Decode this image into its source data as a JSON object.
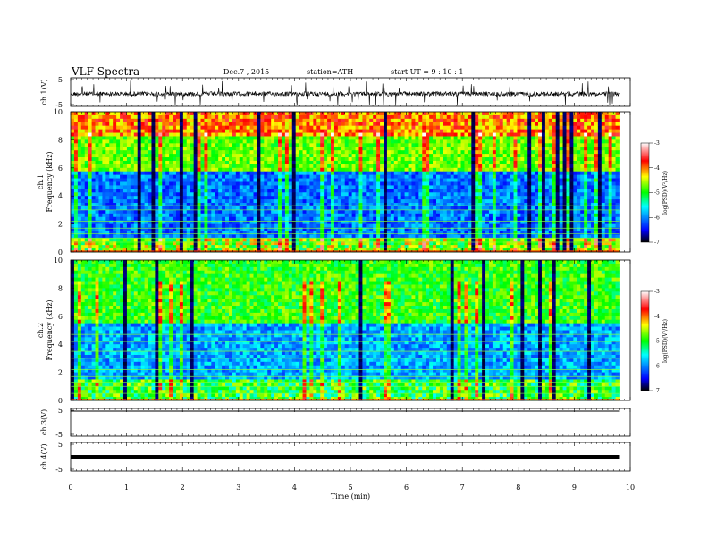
{
  "header": {
    "title": "VLF  Spectra",
    "date": "Dec.7  , 2015",
    "station": "station=ATH",
    "start": "start  UT  =   9  : 10 : 1"
  },
  "chart_data": [
    {
      "type": "line",
      "name": "ch1-waveform",
      "ylabel": "ch.1(V)",
      "ylim": [
        -5,
        5
      ],
      "yticks": [
        "5",
        "-5"
      ],
      "xlim": [
        0,
        10
      ],
      "data_extent_min": 9.8
    },
    {
      "type": "heatmap",
      "name": "ch1-spectrogram",
      "ylabel": "ch.1\nFrequency  (kHz)",
      "ylim": [
        0,
        10
      ],
      "yticks": [
        "0",
        "2",
        "4",
        "6",
        "8",
        "10"
      ],
      "colorbar": {
        "label": "log(PSD)(V²/Hz)",
        "range": [
          -7,
          -3
        ],
        "ticks": [
          "-3",
          "-4",
          "-5",
          "-6",
          "-7"
        ],
        "colormap": [
          "#000000",
          "#0000ff",
          "#00ffff",
          "#00ff00",
          "#ffff00",
          "#ff0000",
          "#ffffff"
        ]
      }
    },
    {
      "type": "heatmap",
      "name": "ch2-spectrogram",
      "ylabel": "ch.2\nFrequency  (kHz)",
      "ylim": [
        0,
        10
      ],
      "yticks": [
        "0",
        "2",
        "4",
        "6",
        "8",
        "10"
      ],
      "colorbar": {
        "label": "log(PSD)(V²/Hz)",
        "range": [
          -7,
          -3
        ],
        "ticks": [
          "-3",
          "-4",
          "-5",
          "-6",
          "-7"
        ],
        "colormap": [
          "#000000",
          "#0000ff",
          "#00ffff",
          "#00ff00",
          "#ffff00",
          "#ff0000",
          "#ffffff"
        ]
      }
    },
    {
      "type": "line",
      "name": "ch3-waveform",
      "ylabel": "ch.3(V)",
      "ylim": [
        -5,
        5
      ],
      "yticks": [
        "5",
        "-5"
      ]
    },
    {
      "type": "line",
      "name": "ch4-waveform",
      "ylabel": "ch.4(V)",
      "ylim": [
        -5,
        5
      ],
      "yticks": [
        "5",
        "-5"
      ]
    }
  ],
  "xaxis": {
    "label": "Time  (min)",
    "range": [
      0,
      10
    ],
    "ticks": [
      "0",
      "1",
      "2",
      "3",
      "4",
      "5",
      "6",
      "7",
      "8",
      "9",
      "10"
    ]
  }
}
